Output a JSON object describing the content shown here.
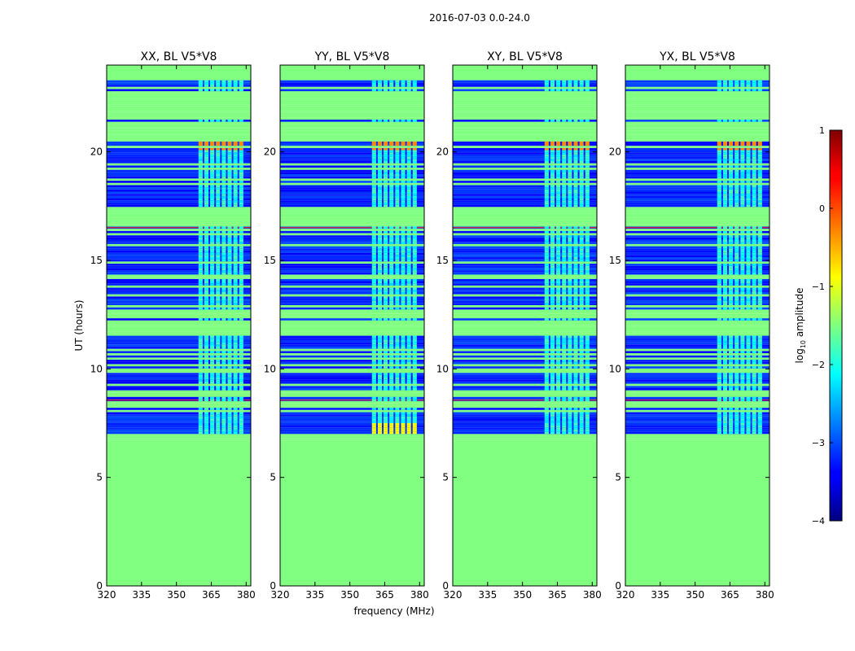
{
  "chart_data": {
    "type": "heatmap",
    "suptitle": "2016-07-03 0.0-24.0",
    "xlabel": "frequency (MHz)",
    "ylabel": "UT (hours)",
    "xlim": [
      320,
      382
    ],
    "ylim": [
      0,
      24
    ],
    "xticks": [
      "320",
      "335",
      "350",
      "365",
      "380"
    ],
    "xtick_values": [
      320,
      335,
      350,
      365,
      380
    ],
    "yticks": [
      "0",
      "5",
      "10",
      "15",
      "20"
    ],
    "ytick_values": [
      0,
      5,
      10,
      15,
      20
    ],
    "panels": [
      {
        "title": "XX, BL V5*V8",
        "pol": "XX"
      },
      {
        "title": "YY, BL V5*V8",
        "pol": "YY"
      },
      {
        "title": "XY, BL V5*V8",
        "pol": "XY"
      },
      {
        "title": "YX, BL V5*V8",
        "pol": "YX"
      }
    ],
    "data_start_hours": 6.7,
    "data_end_hours": 23.3,
    "no_data_value": -1.5,
    "background_value": -3.2,
    "rfi_band_mhz": [
      359.5,
      379.5
    ],
    "colorbar": {
      "label": "log10 amplitude",
      "label_main": "log",
      "label_sub": "10",
      "label_suffix": " amplitude",
      "range": [
        -4,
        1
      ],
      "ticks": [
        "1",
        "0",
        "−1",
        "−2",
        "−3",
        "−4"
      ],
      "tick_values": [
        1,
        0,
        -1,
        -2,
        -3,
        -4
      ],
      "colormap": "jet"
    }
  }
}
